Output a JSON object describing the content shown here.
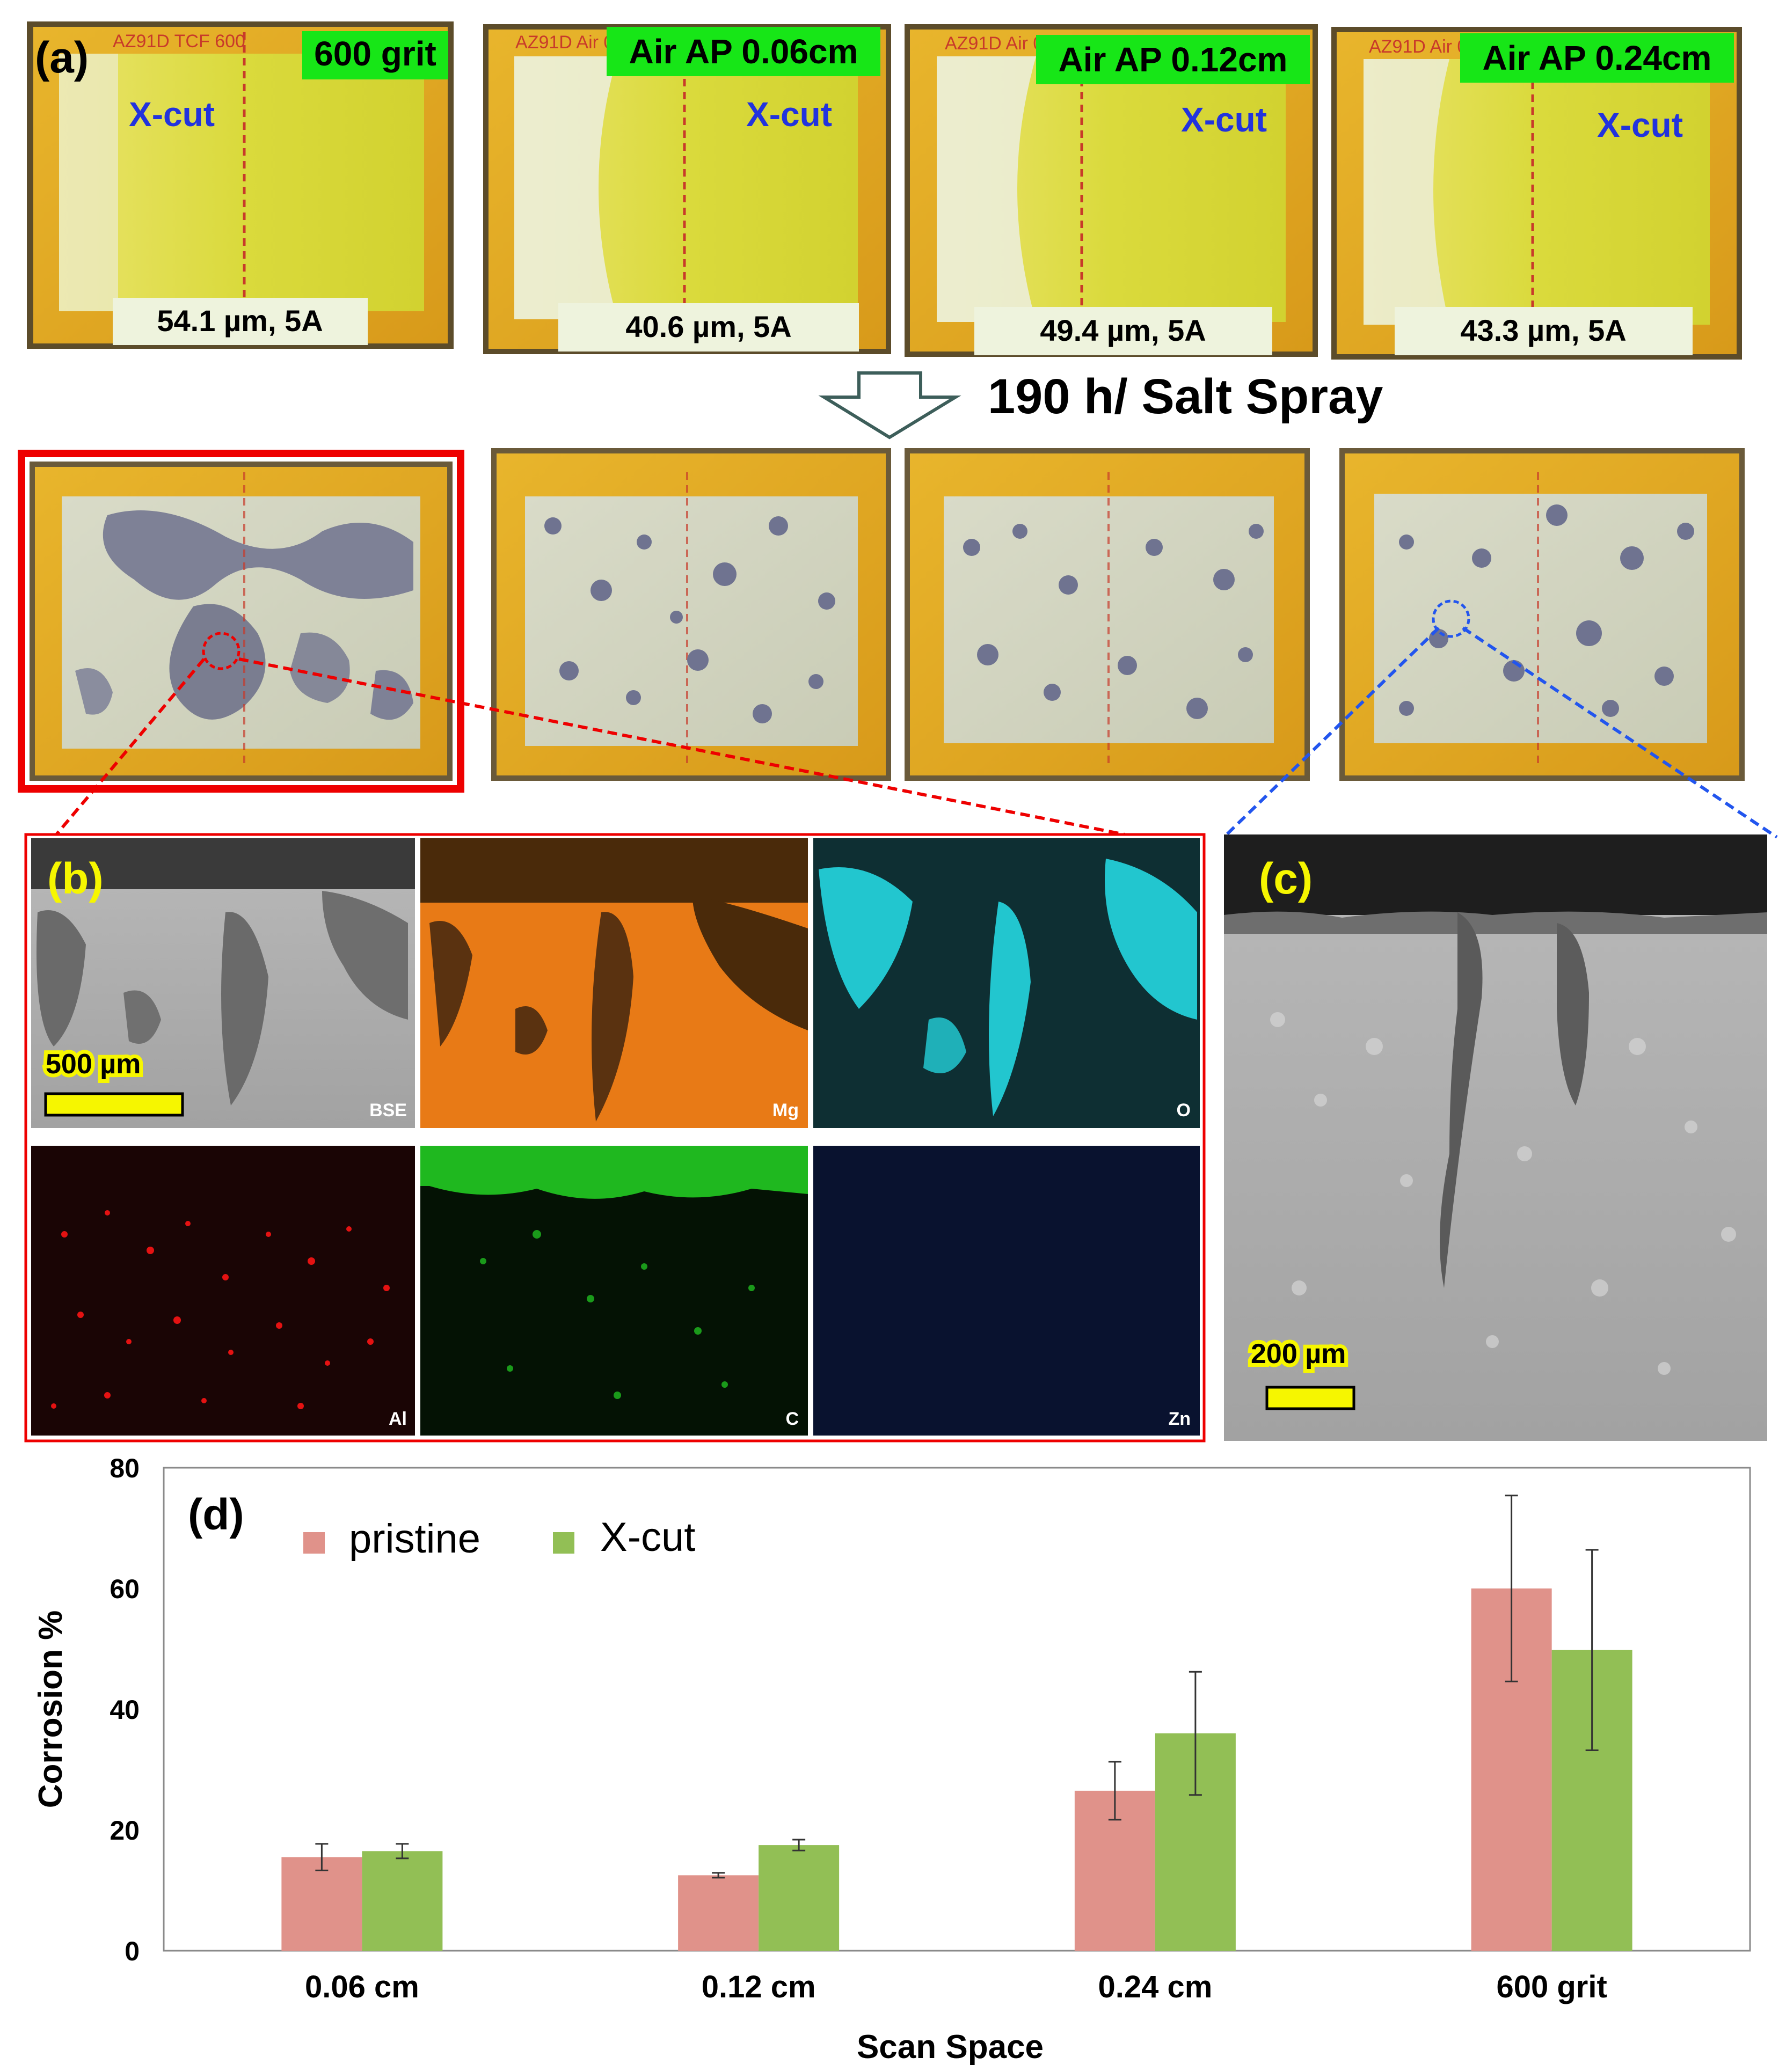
{
  "panel_a": {
    "label": "(a)",
    "samples": [
      {
        "tag": "600 grit",
        "xcut": "X-cut",
        "thickness": "54.1 µm, 5A"
      },
      {
        "tag": "Air AP 0.06cm",
        "xcut": "X-cut",
        "thickness": "40.6 µm, 5A"
      },
      {
        "tag": "Air AP 0.12cm",
        "xcut": "X-cut",
        "thickness": "49.4 µm, 5A"
      },
      {
        "tag": "Air AP 0.24cm",
        "xcut": "X-cut",
        "thickness": "43.3 µm, 5A"
      }
    ],
    "handwriting": [
      "AZ91D TCF 600",
      "AZ91D Air 0.06cm #3",
      "AZ91D Air 0.12cm #3",
      "AZ91D Air 0.24cm #3"
    ]
  },
  "exposure": {
    "label": "190 h/ Salt Spray"
  },
  "panel_b": {
    "label": "(b)",
    "scale_bar": "500 µm",
    "maps": [
      {
        "label": "BSE",
        "color": "#9a9a9a"
      },
      {
        "label": "Mg",
        "color": "#f07d1a"
      },
      {
        "label": "O",
        "color": "#22c6cf"
      },
      {
        "label": "Al",
        "color": "#e41212"
      },
      {
        "label": "C",
        "color": "#1fb81f"
      },
      {
        "label": "Zn",
        "color": "#1c3a8c"
      }
    ]
  },
  "panel_c": {
    "label": "(c)",
    "scale_bar": "200 µm"
  },
  "colors": {
    "pristine": "#e0928a",
    "xcut": "#92bf55",
    "tag_bg": "#17e617",
    "xcut_text": "#2233dd",
    "label_yellow": "#f6f600"
  },
  "chart_data": {
    "type": "bar",
    "panel_label": "(d)",
    "categories": [
      "0.06 cm",
      "0.12 cm",
      "0.24 cm",
      "600 grit"
    ],
    "series": [
      {
        "name": "pristine",
        "values": [
          15.5,
          12.5,
          26.5,
          60
        ],
        "error": [
          2.2,
          0.4,
          4.8,
          15.4
        ]
      },
      {
        "name": "X-cut",
        "values": [
          16.5,
          17.5,
          36,
          49.8
        ],
        "error": [
          1.2,
          0.9,
          10.2,
          16.6
        ]
      }
    ],
    "xlabel": "Scan Space",
    "ylabel": "Corrosion %",
    "ylim": [
      0,
      80
    ],
    "yticks": [
      0,
      20,
      40,
      60,
      80
    ],
    "legend_position": "top-left",
    "grid": false
  }
}
